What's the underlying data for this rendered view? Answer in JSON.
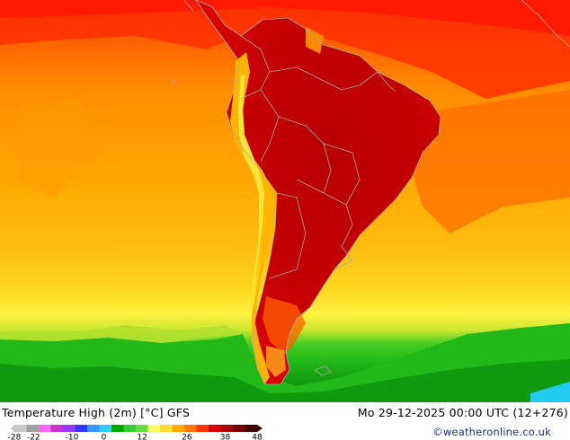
{
  "title": "Temperature High (2m) [°C] GFS",
  "valid_time": "Mo 29-12-2025 00:00 UTC (12+276)",
  "credit": "©weatheronline.co.uk",
  "legend": {
    "ticks": [
      {
        "value": -28,
        "label": "-28"
      },
      {
        "value": -22,
        "label": "-22"
      },
      {
        "value": -10,
        "label": "-10"
      },
      {
        "value": 0,
        "label": "0"
      },
      {
        "value": 12,
        "label": "12"
      },
      {
        "value": 26,
        "label": "26"
      },
      {
        "value": 38,
        "label": "38"
      },
      {
        "value": 48,
        "label": "48"
      }
    ],
    "colors": [
      "#c8c8c8",
      "#a0a0a0",
      "#ff66ff",
      "#cc33cc",
      "#9933ff",
      "#3333ff",
      "#3399ff",
      "#33ccff",
      "#00aa00",
      "#33cc33",
      "#66dd44",
      "#ffff66",
      "#ffdd33",
      "#ffaa00",
      "#ff7700",
      "#ff3300",
      "#dd0000",
      "#aa0000",
      "#770000",
      "#440000"
    ]
  }
}
